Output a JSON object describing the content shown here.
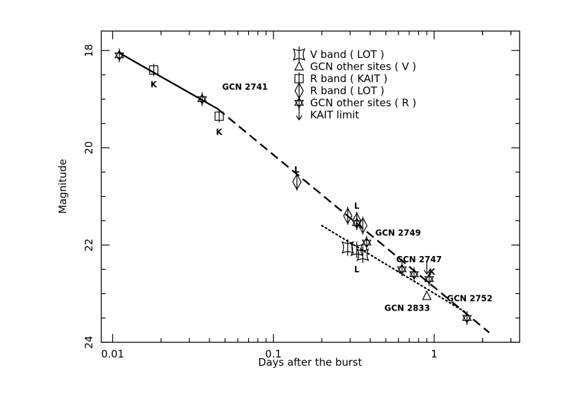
{
  "chart_data": {
    "type": "scatter",
    "xlabel": "Days after the burst",
    "ylabel": "Magnitude",
    "x_scale": "log",
    "xlim": [
      0.0085,
      3.4
    ],
    "ylim": [
      17.6,
      24
    ],
    "y_inverted": true,
    "x_tick_labels": [
      {
        "value": 0.01,
        "label": "0.01"
      },
      {
        "value": 0.1,
        "label": "0.1"
      },
      {
        "value": 1,
        "label": "1"
      }
    ],
    "y_tick_labels": [
      {
        "value": 18,
        "label": "18"
      },
      {
        "value": 20,
        "label": "20"
      },
      {
        "value": 22,
        "label": "22"
      },
      {
        "value": 24,
        "label": "24"
      }
    ],
    "legend_position": "top-right",
    "legend": [
      {
        "marker": "v-band-lot",
        "label": "V band ( LOT )"
      },
      {
        "marker": "triangle",
        "label": "GCN other sites ( V )"
      },
      {
        "marker": "square",
        "label": "R band ( KAIT )"
      },
      {
        "marker": "diamond",
        "label": "R band ( LOT )"
      },
      {
        "marker": "star",
        "label": "GCN other sites ( R )"
      },
      {
        "marker": "arrow",
        "label": "KAIT limit"
      }
    ],
    "series": [
      {
        "marker": "v-band-lot",
        "points": [
          {
            "x": 0.29,
            "y": 22.05
          },
          {
            "x": 0.33,
            "y": 22.1
          },
          {
            "x": 0.36,
            "y": 22.2
          }
        ]
      },
      {
        "marker": "triangle",
        "points": [
          {
            "x": 0.9,
            "y": 23.05
          }
        ]
      },
      {
        "marker": "square",
        "points": [
          {
            "x": 0.018,
            "y": 18.4
          },
          {
            "x": 0.046,
            "y": 19.35
          }
        ]
      },
      {
        "marker": "diamond",
        "points": [
          {
            "x": 0.14,
            "y": 20.7
          },
          {
            "x": 0.29,
            "y": 21.4
          },
          {
            "x": 0.33,
            "y": 21.5
          },
          {
            "x": 0.36,
            "y": 21.6
          }
        ]
      },
      {
        "marker": "star",
        "points": [
          {
            "x": 0.011,
            "y": 18.1
          },
          {
            "x": 0.036,
            "y": 19.0
          },
          {
            "x": 0.33,
            "y": 21.55
          },
          {
            "x": 0.38,
            "y": 21.95
          },
          {
            "x": 0.63,
            "y": 22.5
          },
          {
            "x": 0.75,
            "y": 22.6
          },
          {
            "x": 0.93,
            "y": 22.7
          },
          {
            "x": 1.6,
            "y": 23.5
          }
        ]
      },
      {
        "marker": "arrow",
        "points": [
          {
            "x": 0.9,
            "y": 22.5
          }
        ]
      }
    ],
    "fit_lines": [
      {
        "style": "solid",
        "x": [
          0.011,
          0.045
        ],
        "y": [
          18.05,
          19.2
        ]
      },
      {
        "style": "dashed",
        "x": [
          0.045,
          2.2
        ],
        "y": [
          19.2,
          23.8
        ]
      },
      {
        "style": "dotted",
        "x": [
          0.2,
          1.6
        ],
        "y": [
          21.6,
          23.4
        ]
      }
    ],
    "annotations": [
      {
        "text": "K",
        "x": 0.018,
        "y": 18.7
      },
      {
        "text": "GCN 2741",
        "x": 0.048,
        "y": 18.75
      },
      {
        "text": "K",
        "x": 0.046,
        "y": 19.68
      },
      {
        "text": "L",
        "x": 0.14,
        "y": 20.45
      },
      {
        "text": "L",
        "x": 0.33,
        "y": 21.2
      },
      {
        "text": "GCN 2749",
        "x": 0.43,
        "y": 21.75
      },
      {
        "text": "L",
        "x": 0.33,
        "y": 22.5
      },
      {
        "text": "GCN 2747",
        "x": 0.58,
        "y": 22.3
      },
      {
        "text": "K",
        "x": 0.97,
        "y": 22.55
      },
      {
        "text": "GCN 2833",
        "x": 0.49,
        "y": 23.3
      },
      {
        "text": "GCN 2752",
        "x": 1.2,
        "y": 23.1
      }
    ]
  }
}
